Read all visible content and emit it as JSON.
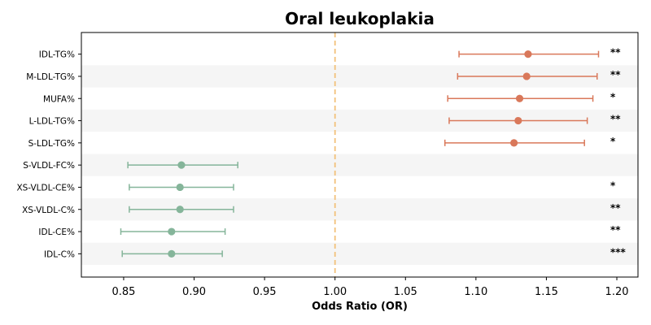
{
  "chart_data": {
    "type": "forest",
    "title": "Oral leukoplakia",
    "xlabel": "Odds Ratio (OR)",
    "ylabel": "",
    "xlim": [
      0.82,
      1.215
    ],
    "xticks": [
      "0.85",
      "0.90",
      "0.95",
      "1.00",
      "1.05",
      "1.10",
      "1.15",
      "1.20"
    ],
    "reference_line": 1.0,
    "grid": false,
    "legend": "none",
    "colors": {
      "positive": "#d9785a",
      "negative": "#85b59a",
      "reference": "#f2c27b",
      "band": "#f5f5f5"
    },
    "rows": [
      {
        "label": "IDL-TG%",
        "or": 1.137,
        "lower": 1.088,
        "upper": 1.187,
        "sig": "**"
      },
      {
        "label": "M-LDL-TG%",
        "or": 1.136,
        "lower": 1.087,
        "upper": 1.186,
        "sig": "**"
      },
      {
        "label": "MUFA%",
        "or": 1.131,
        "lower": 1.08,
        "upper": 1.183,
        "sig": "*"
      },
      {
        "label": "L-LDL-TG%",
        "or": 1.13,
        "lower": 1.081,
        "upper": 1.179,
        "sig": "**"
      },
      {
        "label": "S-LDL-TG%",
        "or": 1.127,
        "lower": 1.078,
        "upper": 1.177,
        "sig": "*"
      },
      {
        "label": "S-VLDL-FC%",
        "or": 0.891,
        "lower": 0.853,
        "upper": 0.931,
        "sig": ""
      },
      {
        "label": "XS-VLDL-CE%",
        "or": 0.89,
        "lower": 0.854,
        "upper": 0.928,
        "sig": "*"
      },
      {
        "label": "XS-VLDL-C%",
        "or": 0.89,
        "lower": 0.854,
        "upper": 0.928,
        "sig": "**"
      },
      {
        "label": "IDL-CE%",
        "or": 0.884,
        "lower": 0.848,
        "upper": 0.922,
        "sig": "**"
      },
      {
        "label": "IDL-C%",
        "or": 0.884,
        "lower": 0.849,
        "upper": 0.92,
        "sig": "***"
      }
    ]
  }
}
